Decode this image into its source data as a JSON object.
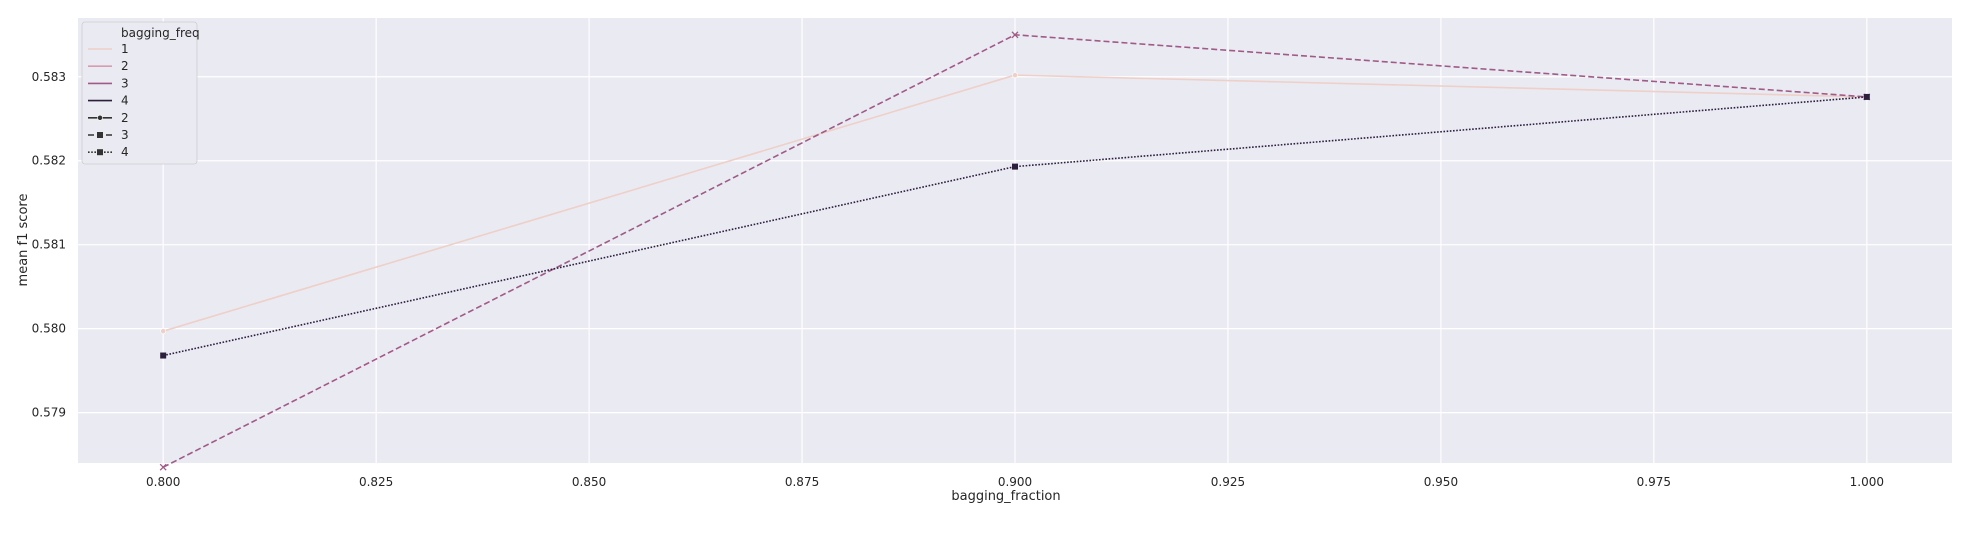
{
  "chart_data": {
    "type": "line",
    "xlabel": "bagging_fraction",
    "ylabel": "mean f1 score",
    "x": [
      0.8,
      0.9,
      1.0
    ],
    "xlim": [
      0.79,
      1.01
    ],
    "ylim": [
      0.5784,
      0.5837
    ],
    "xticks": [
      "0.800",
      "0.825",
      "0.850",
      "0.875",
      "0.900",
      "0.925",
      "0.950",
      "0.975",
      "1.000"
    ],
    "yticks": [
      "0.579",
      "0.580",
      "0.581",
      "0.582",
      "0.583"
    ],
    "grid": true,
    "background": "#eaeaf2",
    "legend": {
      "position": "top-left",
      "title": "bagging_freq",
      "hue_entries": [
        {
          "label": "1",
          "color": "#eed0c8"
        },
        {
          "label": "2",
          "color": "#d69cb0"
        },
        {
          "label": "3",
          "color": "#a05a87"
        },
        {
          "label": "4",
          "color": "#2d1e3e"
        }
      ],
      "style_entries": [
        {
          "label": "2",
          "dash": "solid",
          "marker": "circle"
        },
        {
          "label": "3",
          "dash": "dashed",
          "marker": "x"
        },
        {
          "label": "4",
          "dash": "dotted",
          "marker": "square"
        }
      ]
    },
    "series": [
      {
        "key": "s2",
        "color": "#eed0c8",
        "dash": "solid",
        "marker": "circle",
        "values": [
          0.57997,
          0.58302,
          0.58276
        ]
      },
      {
        "key": "s3",
        "color": "#a05a87",
        "dash": "dashed",
        "marker": "x",
        "values": [
          0.57835,
          0.5835,
          0.58276
        ]
      },
      {
        "key": "s4",
        "color": "#2d1e3e",
        "dash": "dotted",
        "marker": "square",
        "values": [
          0.57968,
          0.58193,
          0.58276
        ]
      }
    ]
  }
}
